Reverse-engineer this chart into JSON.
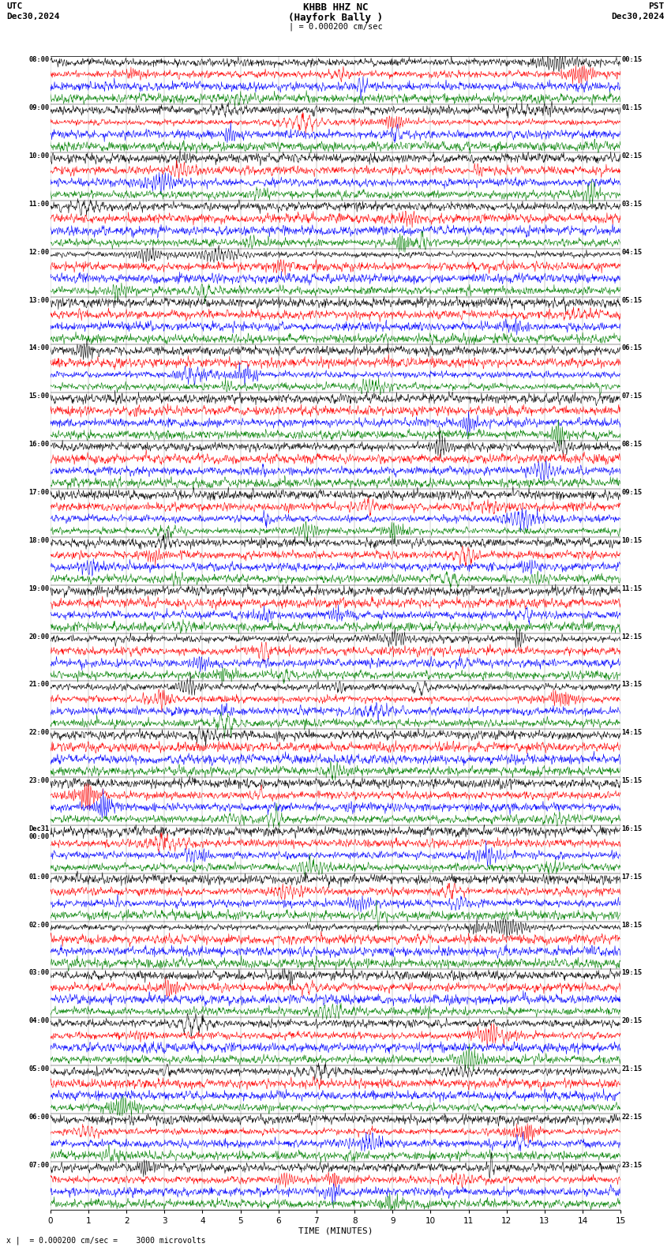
{
  "title_line1": "KHBB HHZ NC",
  "title_line2": "(Hayfork Bally )",
  "scale_label": "| = 0.000200 cm/sec",
  "utc_label": "UTC",
  "pst_label": "PST",
  "date_left": "Dec30,2024",
  "date_right": "Dec30,2024",
  "footer": "x |  = 0.000200 cm/sec =    3000 microvolts",
  "xlabel": "TIME (MINUTES)",
  "xlim": [
    0,
    15
  ],
  "xticks": [
    0,
    1,
    2,
    3,
    4,
    5,
    6,
    7,
    8,
    9,
    10,
    11,
    12,
    13,
    14,
    15
  ],
  "background_color": "#ffffff",
  "line_colors": [
    "#000000",
    "#ff0000",
    "#0000ff",
    "#008000"
  ],
  "n_rows": 24,
  "traces_per_row": 4,
  "left_times": [
    "08:00",
    "09:00",
    "10:00",
    "11:00",
    "12:00",
    "13:00",
    "14:00",
    "15:00",
    "16:00",
    "17:00",
    "18:00",
    "19:00",
    "20:00",
    "21:00",
    "22:00",
    "23:00",
    "Dec31\n00:00",
    "01:00",
    "02:00",
    "03:00",
    "04:00",
    "05:00",
    "06:00",
    "07:00"
  ],
  "right_times": [
    "00:15",
    "01:15",
    "02:15",
    "03:15",
    "04:15",
    "05:15",
    "06:15",
    "07:15",
    "08:15",
    "09:15",
    "10:15",
    "11:15",
    "12:15",
    "13:15",
    "14:15",
    "15:15",
    "16:15",
    "17:15",
    "18:15",
    "19:15",
    "20:15",
    "21:15",
    "22:15",
    "23:15"
  ],
  "seed": 42
}
